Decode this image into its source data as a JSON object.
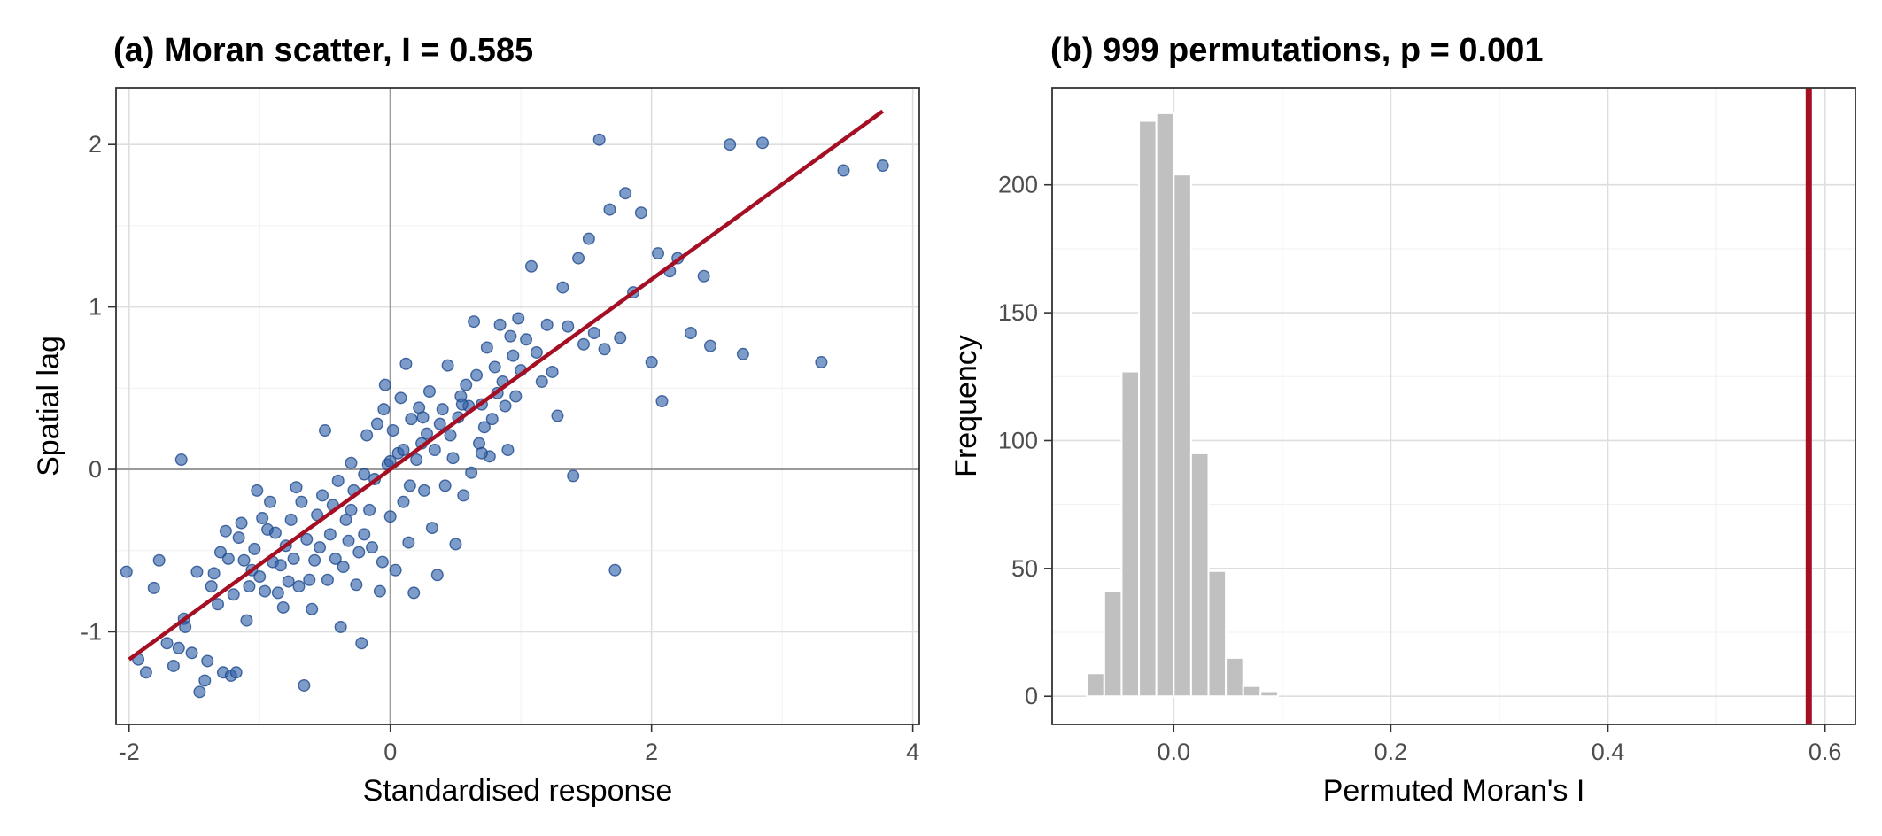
{
  "chart_data": [
    {
      "type": "scatter",
      "title": "(a) Moran scatter, I = 0.585",
      "xlabel": "Standardised response",
      "ylabel": "Spatial lag",
      "xlim": [
        -2.1,
        4.05
      ],
      "ylim": [
        -1.57,
        2.35
      ],
      "x_ticks": [
        -2,
        0,
        2,
        4
      ],
      "x_tick_labels": [
        "-2",
        "0",
        "2",
        "4"
      ],
      "y_ticks": [
        -1,
        0,
        1,
        2
      ],
      "y_tick_labels": [
        "-1",
        "0",
        "1",
        "2"
      ],
      "grid": true,
      "reference_lines": {
        "x": 0,
        "y": 0
      },
      "point_color": "#2f5fa8",
      "fit_line": {
        "slope": 0.585,
        "intercept": 0.0,
        "x_range": [
          -2.0,
          3.77
        ],
        "color": "#a50f24"
      },
      "points": [
        [
          -2.02,
          -0.63
        ],
        [
          -1.93,
          -1.17
        ],
        [
          -1.87,
          -1.25
        ],
        [
          -1.81,
          -0.73
        ],
        [
          -1.77,
          -0.56
        ],
        [
          -1.71,
          -1.07
        ],
        [
          -1.66,
          -1.21
        ],
        [
          -1.62,
          -1.1
        ],
        [
          -1.6,
          0.06
        ],
        [
          -1.58,
          -0.92
        ],
        [
          -1.57,
          -0.97
        ],
        [
          -1.52,
          -1.13
        ],
        [
          -1.48,
          -0.63
        ],
        [
          -1.46,
          -1.37
        ],
        [
          -1.42,
          -1.3
        ],
        [
          -1.4,
          -1.18
        ],
        [
          -1.37,
          -0.72
        ],
        [
          -1.35,
          -0.64
        ],
        [
          -1.32,
          -0.83
        ],
        [
          -1.3,
          -0.51
        ],
        [
          -1.28,
          -1.25
        ],
        [
          -1.26,
          -0.38
        ],
        [
          -1.24,
          -0.55
        ],
        [
          -1.22,
          -1.27
        ],
        [
          -1.2,
          -0.77
        ],
        [
          -1.18,
          -1.25
        ],
        [
          -1.16,
          -0.42
        ],
        [
          -1.14,
          -0.33
        ],
        [
          -1.12,
          -0.56
        ],
        [
          -1.1,
          -0.93
        ],
        [
          -1.08,
          -0.72
        ],
        [
          -1.06,
          -0.62
        ],
        [
          -1.04,
          -0.49
        ],
        [
          -1.02,
          -0.13
        ],
        [
          -1.0,
          -0.66
        ],
        [
          -0.98,
          -0.3
        ],
        [
          -0.96,
          -0.75
        ],
        [
          -0.94,
          -0.37
        ],
        [
          -0.92,
          -0.2
        ],
        [
          -0.9,
          -0.57
        ],
        [
          -0.88,
          -0.39
        ],
        [
          -0.86,
          -0.76
        ],
        [
          -0.84,
          -0.59
        ],
        [
          -0.82,
          -0.85
        ],
        [
          -0.8,
          -0.47
        ],
        [
          -0.78,
          -0.69
        ],
        [
          -0.76,
          -0.31
        ],
        [
          -0.74,
          -0.55
        ],
        [
          -0.72,
          -0.11
        ],
        [
          -0.7,
          -0.72
        ],
        [
          -0.68,
          -0.2
        ],
        [
          -0.66,
          -1.33
        ],
        [
          -0.64,
          -0.43
        ],
        [
          -0.62,
          -0.68
        ],
        [
          -0.6,
          -0.86
        ],
        [
          -0.58,
          -0.56
        ],
        [
          -0.56,
          -0.28
        ],
        [
          -0.54,
          -0.48
        ],
        [
          -0.52,
          -0.16
        ],
        [
          -0.5,
          0.24
        ],
        [
          -0.48,
          -0.68
        ],
        [
          -0.46,
          -0.4
        ],
        [
          -0.44,
          -0.22
        ],
        [
          -0.42,
          -0.55
        ],
        [
          -0.4,
          -0.07
        ],
        [
          -0.38,
          -0.97
        ],
        [
          -0.36,
          -0.6
        ],
        [
          -0.34,
          -0.31
        ],
        [
          -0.32,
          -0.44
        ],
        [
          -0.3,
          0.04
        ],
        [
          -0.28,
          -0.13
        ],
        [
          -0.26,
          -0.71
        ],
        [
          -0.24,
          -0.51
        ],
        [
          -0.22,
          -1.07
        ],
        [
          -0.2,
          -0.4
        ],
        [
          -0.18,
          0.21
        ],
        [
          -0.16,
          -0.25
        ],
        [
          -0.14,
          -0.48
        ],
        [
          -0.12,
          -0.06
        ],
        [
          -0.1,
          0.28
        ],
        [
          -0.08,
          -0.75
        ],
        [
          -0.06,
          -0.57
        ],
        [
          -0.04,
          0.52
        ],
        [
          -0.02,
          0.03
        ],
        [
          0.0,
          -0.29
        ],
        [
          0.02,
          0.24
        ],
        [
          0.04,
          -0.62
        ],
        [
          0.06,
          0.1
        ],
        [
          0.08,
          0.44
        ],
        [
          0.1,
          -0.2
        ],
        [
          0.12,
          0.65
        ],
        [
          0.14,
          -0.45
        ],
        [
          0.16,
          0.31
        ],
        [
          0.18,
          -0.76
        ],
        [
          0.2,
          0.06
        ],
        [
          0.22,
          0.38
        ],
        [
          0.24,
          0.16
        ],
        [
          0.26,
          -0.13
        ],
        [
          0.28,
          0.22
        ],
        [
          0.3,
          0.48
        ],
        [
          0.32,
          -0.36
        ],
        [
          0.34,
          0.12
        ],
        [
          0.36,
          -0.65
        ],
        [
          0.38,
          0.28
        ],
        [
          0.4,
          0.37
        ],
        [
          0.42,
          -0.1
        ],
        [
          0.44,
          0.64
        ],
        [
          0.46,
          0.21
        ],
        [
          0.48,
          0.07
        ],
        [
          0.5,
          -0.46
        ],
        [
          0.52,
          0.32
        ],
        [
          0.54,
          0.45
        ],
        [
          0.56,
          -0.16
        ],
        [
          0.58,
          0.52
        ],
        [
          0.6,
          0.39
        ],
        [
          0.62,
          -0.02
        ],
        [
          0.64,
          0.91
        ],
        [
          0.66,
          0.58
        ],
        [
          0.68,
          0.16
        ],
        [
          0.7,
          0.4
        ],
        [
          0.72,
          0.26
        ],
        [
          0.74,
          0.75
        ],
        [
          0.76,
          0.08
        ],
        [
          0.78,
          0.31
        ],
        [
          0.8,
          0.63
        ],
        [
          0.82,
          0.47
        ],
        [
          0.84,
          0.89
        ],
        [
          0.86,
          0.54
        ],
        [
          0.88,
          0.39
        ],
        [
          0.9,
          0.12
        ],
        [
          0.92,
          0.82
        ],
        [
          0.94,
          0.7
        ],
        [
          0.96,
          0.45
        ],
        [
          0.98,
          0.93
        ],
        [
          1.0,
          0.61
        ],
        [
          1.04,
          0.8
        ],
        [
          1.08,
          1.25
        ],
        [
          1.12,
          0.72
        ],
        [
          1.16,
          0.54
        ],
        [
          1.2,
          0.89
        ],
        [
          1.24,
          0.6
        ],
        [
          1.28,
          0.33
        ],
        [
          1.32,
          1.12
        ],
        [
          1.36,
          0.88
        ],
        [
          1.4,
          -0.04
        ],
        [
          1.44,
          1.3
        ],
        [
          1.48,
          0.77
        ],
        [
          1.52,
          1.42
        ],
        [
          1.56,
          0.84
        ],
        [
          1.6,
          2.03
        ],
        [
          1.64,
          0.74
        ],
        [
          1.68,
          1.6
        ],
        [
          1.72,
          -0.62
        ],
        [
          1.76,
          0.81
        ],
        [
          1.8,
          1.7
        ],
        [
          1.86,
          1.09
        ],
        [
          1.92,
          1.58
        ],
        [
          2.0,
          0.66
        ],
        [
          2.05,
          1.33
        ],
        [
          2.08,
          0.42
        ],
        [
          2.14,
          1.22
        ],
        [
          2.2,
          1.3
        ],
        [
          2.3,
          0.84
        ],
        [
          2.4,
          1.19
        ],
        [
          2.45,
          0.76
        ],
        [
          2.6,
          2.0
        ],
        [
          2.7,
          0.71
        ],
        [
          2.85,
          2.01
        ],
        [
          3.3,
          0.66
        ],
        [
          3.47,
          1.84
        ],
        [
          3.77,
          1.87
        ],
        [
          0.0,
          0.05
        ],
        [
          -0.05,
          0.37
        ],
        [
          0.1,
          0.12
        ],
        [
          0.25,
          0.32
        ],
        [
          0.55,
          0.4
        ],
        [
          0.7,
          0.1
        ],
        [
          -0.3,
          -0.25
        ],
        [
          -0.2,
          -0.03
        ],
        [
          0.15,
          -0.1
        ]
      ]
    },
    {
      "type": "bar",
      "title": "(b) 999 permutations, p = 0.001",
      "xlabel": "Permuted Moran's I",
      "ylabel": "Frequency",
      "xlim": [
        -0.112,
        0.628
      ],
      "ylim": [
        -11,
        238
      ],
      "x_ticks": [
        0.0,
        0.2,
        0.4,
        0.6
      ],
      "x_tick_labels": [
        "0.0",
        "0.2",
        "0.4",
        "0.6"
      ],
      "y_ticks": [
        0,
        50,
        100,
        150,
        200
      ],
      "y_tick_labels": [
        "0",
        "50",
        "100",
        "150",
        "200"
      ],
      "grid": true,
      "bar_color": "#c0c0c0",
      "bin_width": 0.016,
      "bin_centers": [
        -0.072,
        -0.056,
        -0.04,
        -0.024,
        -0.008,
        0.008,
        0.024,
        0.04,
        0.056,
        0.072,
        0.088
      ],
      "values": [
        9,
        41,
        127,
        225,
        228,
        204,
        95,
        49,
        15,
        4,
        2
      ],
      "observed_line": {
        "x": 0.585,
        "color": "#a50f24"
      }
    }
  ]
}
